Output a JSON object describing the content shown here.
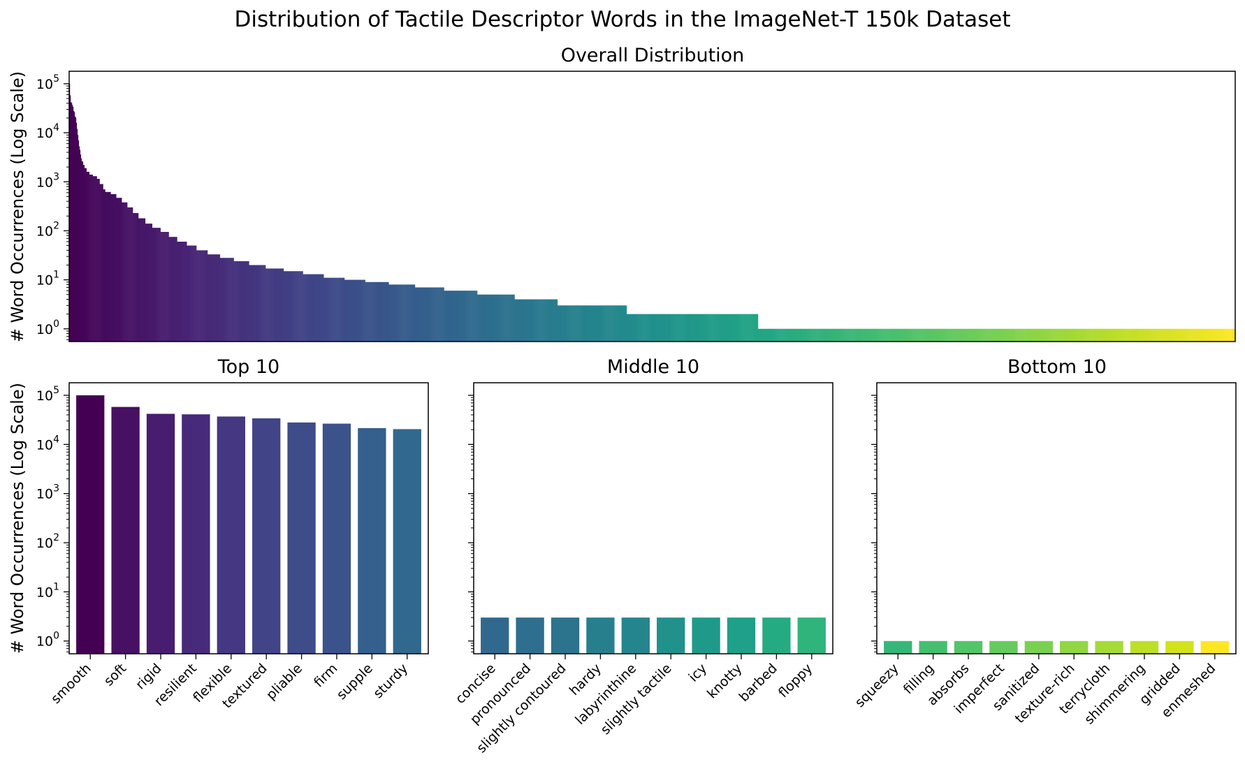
{
  "figure": {
    "suptitle": "Distribution of Tactile Descriptor Words in the ImageNet-T 150k Dataset"
  },
  "chart_data": [
    {
      "type": "bar",
      "title": "Overall Distribution",
      "xlabel": "",
      "ylabel": "# Word Occurrences (Log Scale)",
      "yscale": "log",
      "ylim": [
        0.55,
        180000
      ],
      "yticks": [
        1,
        10,
        100,
        1000,
        10000,
        100000
      ],
      "colormap": "viridis",
      "grid": false,
      "legend": "none",
      "description_of_values": "Rank-ordered counts for all descriptor words",
      "segments": [
        {
          "count": 1,
          "value": 100000
        },
        {
          "count": 1,
          "value": 58000
        },
        {
          "count": 1,
          "value": 42000
        },
        {
          "count": 1,
          "value": 41000
        },
        {
          "count": 1,
          "value": 37000
        },
        {
          "count": 1,
          "value": 34000
        },
        {
          "count": 1,
          "value": 28000
        },
        {
          "count": 1,
          "value": 26500
        },
        {
          "count": 1,
          "value": 21500
        },
        {
          "count": 1,
          "value": 20500
        },
        {
          "count": 1,
          "value": 16000
        },
        {
          "count": 1,
          "value": 12000
        },
        {
          "count": 1,
          "value": 9000
        },
        {
          "count": 1,
          "value": 7000
        },
        {
          "count": 1,
          "value": 5300
        },
        {
          "count": 1,
          "value": 4500
        },
        {
          "count": 1,
          "value": 3600
        },
        {
          "count": 1,
          "value": 3000
        },
        {
          "count": 2,
          "value": 2600
        },
        {
          "count": 2,
          "value": 2200
        },
        {
          "count": 3,
          "value": 1900
        },
        {
          "count": 4,
          "value": 1600
        },
        {
          "count": 5,
          "value": 1400
        },
        {
          "count": 6,
          "value": 1300
        },
        {
          "count": 4,
          "value": 1150
        },
        {
          "count": 5,
          "value": 900
        },
        {
          "count": 3,
          "value": 700
        },
        {
          "count": 8,
          "value": 620
        },
        {
          "count": 8,
          "value": 560
        },
        {
          "count": 8,
          "value": 470
        },
        {
          "count": 8,
          "value": 380
        },
        {
          "count": 8,
          "value": 300
        },
        {
          "count": 8,
          "value": 230
        },
        {
          "count": 10,
          "value": 180
        },
        {
          "count": 10,
          "value": 140
        },
        {
          "count": 12,
          "value": 115
        },
        {
          "count": 12,
          "value": 95
        },
        {
          "count": 12,
          "value": 75
        },
        {
          "count": 14,
          "value": 60
        },
        {
          "count": 14,
          "value": 50
        },
        {
          "count": 16,
          "value": 40
        },
        {
          "count": 18,
          "value": 33
        },
        {
          "count": 20,
          "value": 28
        },
        {
          "count": 22,
          "value": 24
        },
        {
          "count": 24,
          "value": 20
        },
        {
          "count": 26,
          "value": 17
        },
        {
          "count": 28,
          "value": 15
        },
        {
          "count": 30,
          "value": 13
        },
        {
          "count": 30,
          "value": 11
        },
        {
          "count": 30,
          "value": 10
        },
        {
          "count": 34,
          "value": 9
        },
        {
          "count": 38,
          "value": 8
        },
        {
          "count": 42,
          "value": 7
        },
        {
          "count": 48,
          "value": 6
        },
        {
          "count": 54,
          "value": 5
        },
        {
          "count": 62,
          "value": 4
        },
        {
          "count": 100,
          "value": 3
        },
        {
          "count": 190,
          "value": 2
        },
        {
          "count": 690,
          "value": 1
        }
      ]
    },
    {
      "type": "bar",
      "title": "Top 10",
      "xlabel": "",
      "ylabel": "# Word Occurrences (Log Scale)",
      "yscale": "log",
      "ylim": [
        0.55,
        180000
      ],
      "yticks": [
        1,
        10,
        100,
        1000,
        10000,
        100000
      ],
      "grid": false,
      "legend": "none",
      "categories": [
        "smooth",
        "soft",
        "rigid",
        "resilient",
        "flexible",
        "textured",
        "pliable",
        "firm",
        "supple",
        "sturdy"
      ],
      "values": [
        100000,
        58000,
        42000,
        41000,
        37000,
        34000,
        28000,
        26500,
        21500,
        20500
      ],
      "colors": [
        "#440154",
        "#471063",
        "#481d6f",
        "#472a7a",
        "#453781",
        "#414487",
        "#3e4c8a",
        "#3b528b",
        "#355f8d",
        "#31688e"
      ]
    },
    {
      "type": "bar",
      "title": "Middle 10",
      "xlabel": "",
      "ylabel": "",
      "yscale": "log",
      "ylim": [
        0.55,
        180000
      ],
      "yticks": [
        1,
        10,
        100,
        1000,
        10000,
        100000
      ],
      "ytick_labels_shown": false,
      "grid": false,
      "legend": "none",
      "categories": [
        "concise",
        "pronounced",
        "slightly contoured",
        "hardy",
        "labyrinthine",
        "slightly tactile",
        "icy",
        "knotty",
        "barbed",
        "floppy"
      ],
      "values": [
        3,
        3,
        3,
        3,
        3,
        3,
        3,
        3,
        3,
        3
      ],
      "colors": [
        "#31688e",
        "#2e6e8e",
        "#2c738e",
        "#277f8e",
        "#25858e",
        "#21918c",
        "#1f9a8a",
        "#1fa088",
        "#25ab82",
        "#2fb47c"
      ]
    },
    {
      "type": "bar",
      "title": "Bottom 10",
      "xlabel": "",
      "ylabel": "",
      "yscale": "log",
      "ylim": [
        0.55,
        180000
      ],
      "yticks": [
        1,
        10,
        100,
        1000,
        10000,
        100000
      ],
      "ytick_labels_shown": false,
      "grid": false,
      "legend": "none",
      "categories": [
        "squeezy",
        "filling",
        "absorbs",
        "imperfect",
        "sanitized",
        "texture-rich",
        "terrycloth",
        "shimmering",
        "gridded",
        "enmeshed"
      ],
      "values": [
        1,
        1,
        1,
        1,
        1,
        1,
        1,
        1,
        1,
        1
      ],
      "colors": [
        "#35b779",
        "#44bf70",
        "#52c569",
        "#65cb5e",
        "#7ad151",
        "#90d743",
        "#a5db36",
        "#bddf26",
        "#d2e21b",
        "#fde725"
      ]
    }
  ]
}
